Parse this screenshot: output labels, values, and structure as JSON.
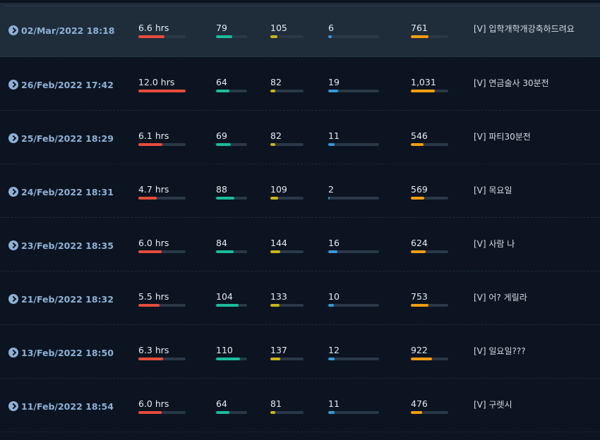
{
  "colors": {
    "hours": "#e74c3c",
    "metric_a": "#1abc9c",
    "metric_b": "#c8b419",
    "metric_c": "#3498db",
    "metric_d": "#f39c12"
  },
  "icons": {
    "date_arrow": "circle-chevron-right-icon"
  },
  "streams": [
    {
      "date": "02/Mar/2022 18:18",
      "hours": "6.6 hrs",
      "hours_fill": 0.55,
      "a": "79",
      "a_fill": 0.52,
      "b": "105",
      "b_fill": 0.22,
      "c": "6",
      "c_fill": 0.07,
      "d": "761",
      "d_fill": 0.47,
      "title": "[V] 입학개학개강축하드려요"
    },
    {
      "date": "26/Feb/2022 17:42",
      "hours": "12.0 hrs",
      "hours_fill": 1.0,
      "a": "64",
      "a_fill": 0.43,
      "b": "82",
      "b_fill": 0.15,
      "c": "19",
      "c_fill": 0.2,
      "d": "1,031",
      "d_fill": 0.64,
      "title": "[V] 연금술사 30분전"
    },
    {
      "date": "25/Feb/2022 18:29",
      "hours": "6.1 hrs",
      "hours_fill": 0.5,
      "a": "69",
      "a_fill": 0.47,
      "b": "82",
      "b_fill": 0.15,
      "c": "11",
      "c_fill": 0.12,
      "d": "546",
      "d_fill": 0.34,
      "title": "[V] 파티30분전"
    },
    {
      "date": "24/Feb/2022 18:31",
      "hours": "4.7 hrs",
      "hours_fill": 0.39,
      "a": "88",
      "a_fill": 0.59,
      "b": "109",
      "b_fill": 0.23,
      "c": "2",
      "c_fill": 0.03,
      "d": "569",
      "d_fill": 0.35,
      "title": "[V] 목요일"
    },
    {
      "date": "23/Feb/2022 18:35",
      "hours": "6.0 hrs",
      "hours_fill": 0.49,
      "a": "84",
      "a_fill": 0.57,
      "b": "144",
      "b_fill": 0.3,
      "c": "16",
      "c_fill": 0.18,
      "d": "624",
      "d_fill": 0.39,
      "title": "[V] 사람 나"
    },
    {
      "date": "21/Feb/2022 18:32",
      "hours": "5.5 hrs",
      "hours_fill": 0.45,
      "a": "104",
      "a_fill": 0.73,
      "b": "133",
      "b_fill": 0.28,
      "c": "10",
      "c_fill": 0.11,
      "d": "753",
      "d_fill": 0.47,
      "title": "[V] 어? 게릴라"
    },
    {
      "date": "13/Feb/2022 18:50",
      "hours": "6.3 hrs",
      "hours_fill": 0.52,
      "a": "110",
      "a_fill": 0.77,
      "b": "137",
      "b_fill": 0.29,
      "c": "12",
      "c_fill": 0.13,
      "d": "922",
      "d_fill": 0.57,
      "title": "[V] 일요일???"
    },
    {
      "date": "11/Feb/2022 18:54",
      "hours": "6.0 hrs",
      "hours_fill": 0.49,
      "a": "64",
      "a_fill": 0.43,
      "b": "81",
      "b_fill": 0.15,
      "c": "11",
      "c_fill": 0.12,
      "d": "476",
      "d_fill": 0.3,
      "title": "[V] 구렛시"
    }
  ]
}
